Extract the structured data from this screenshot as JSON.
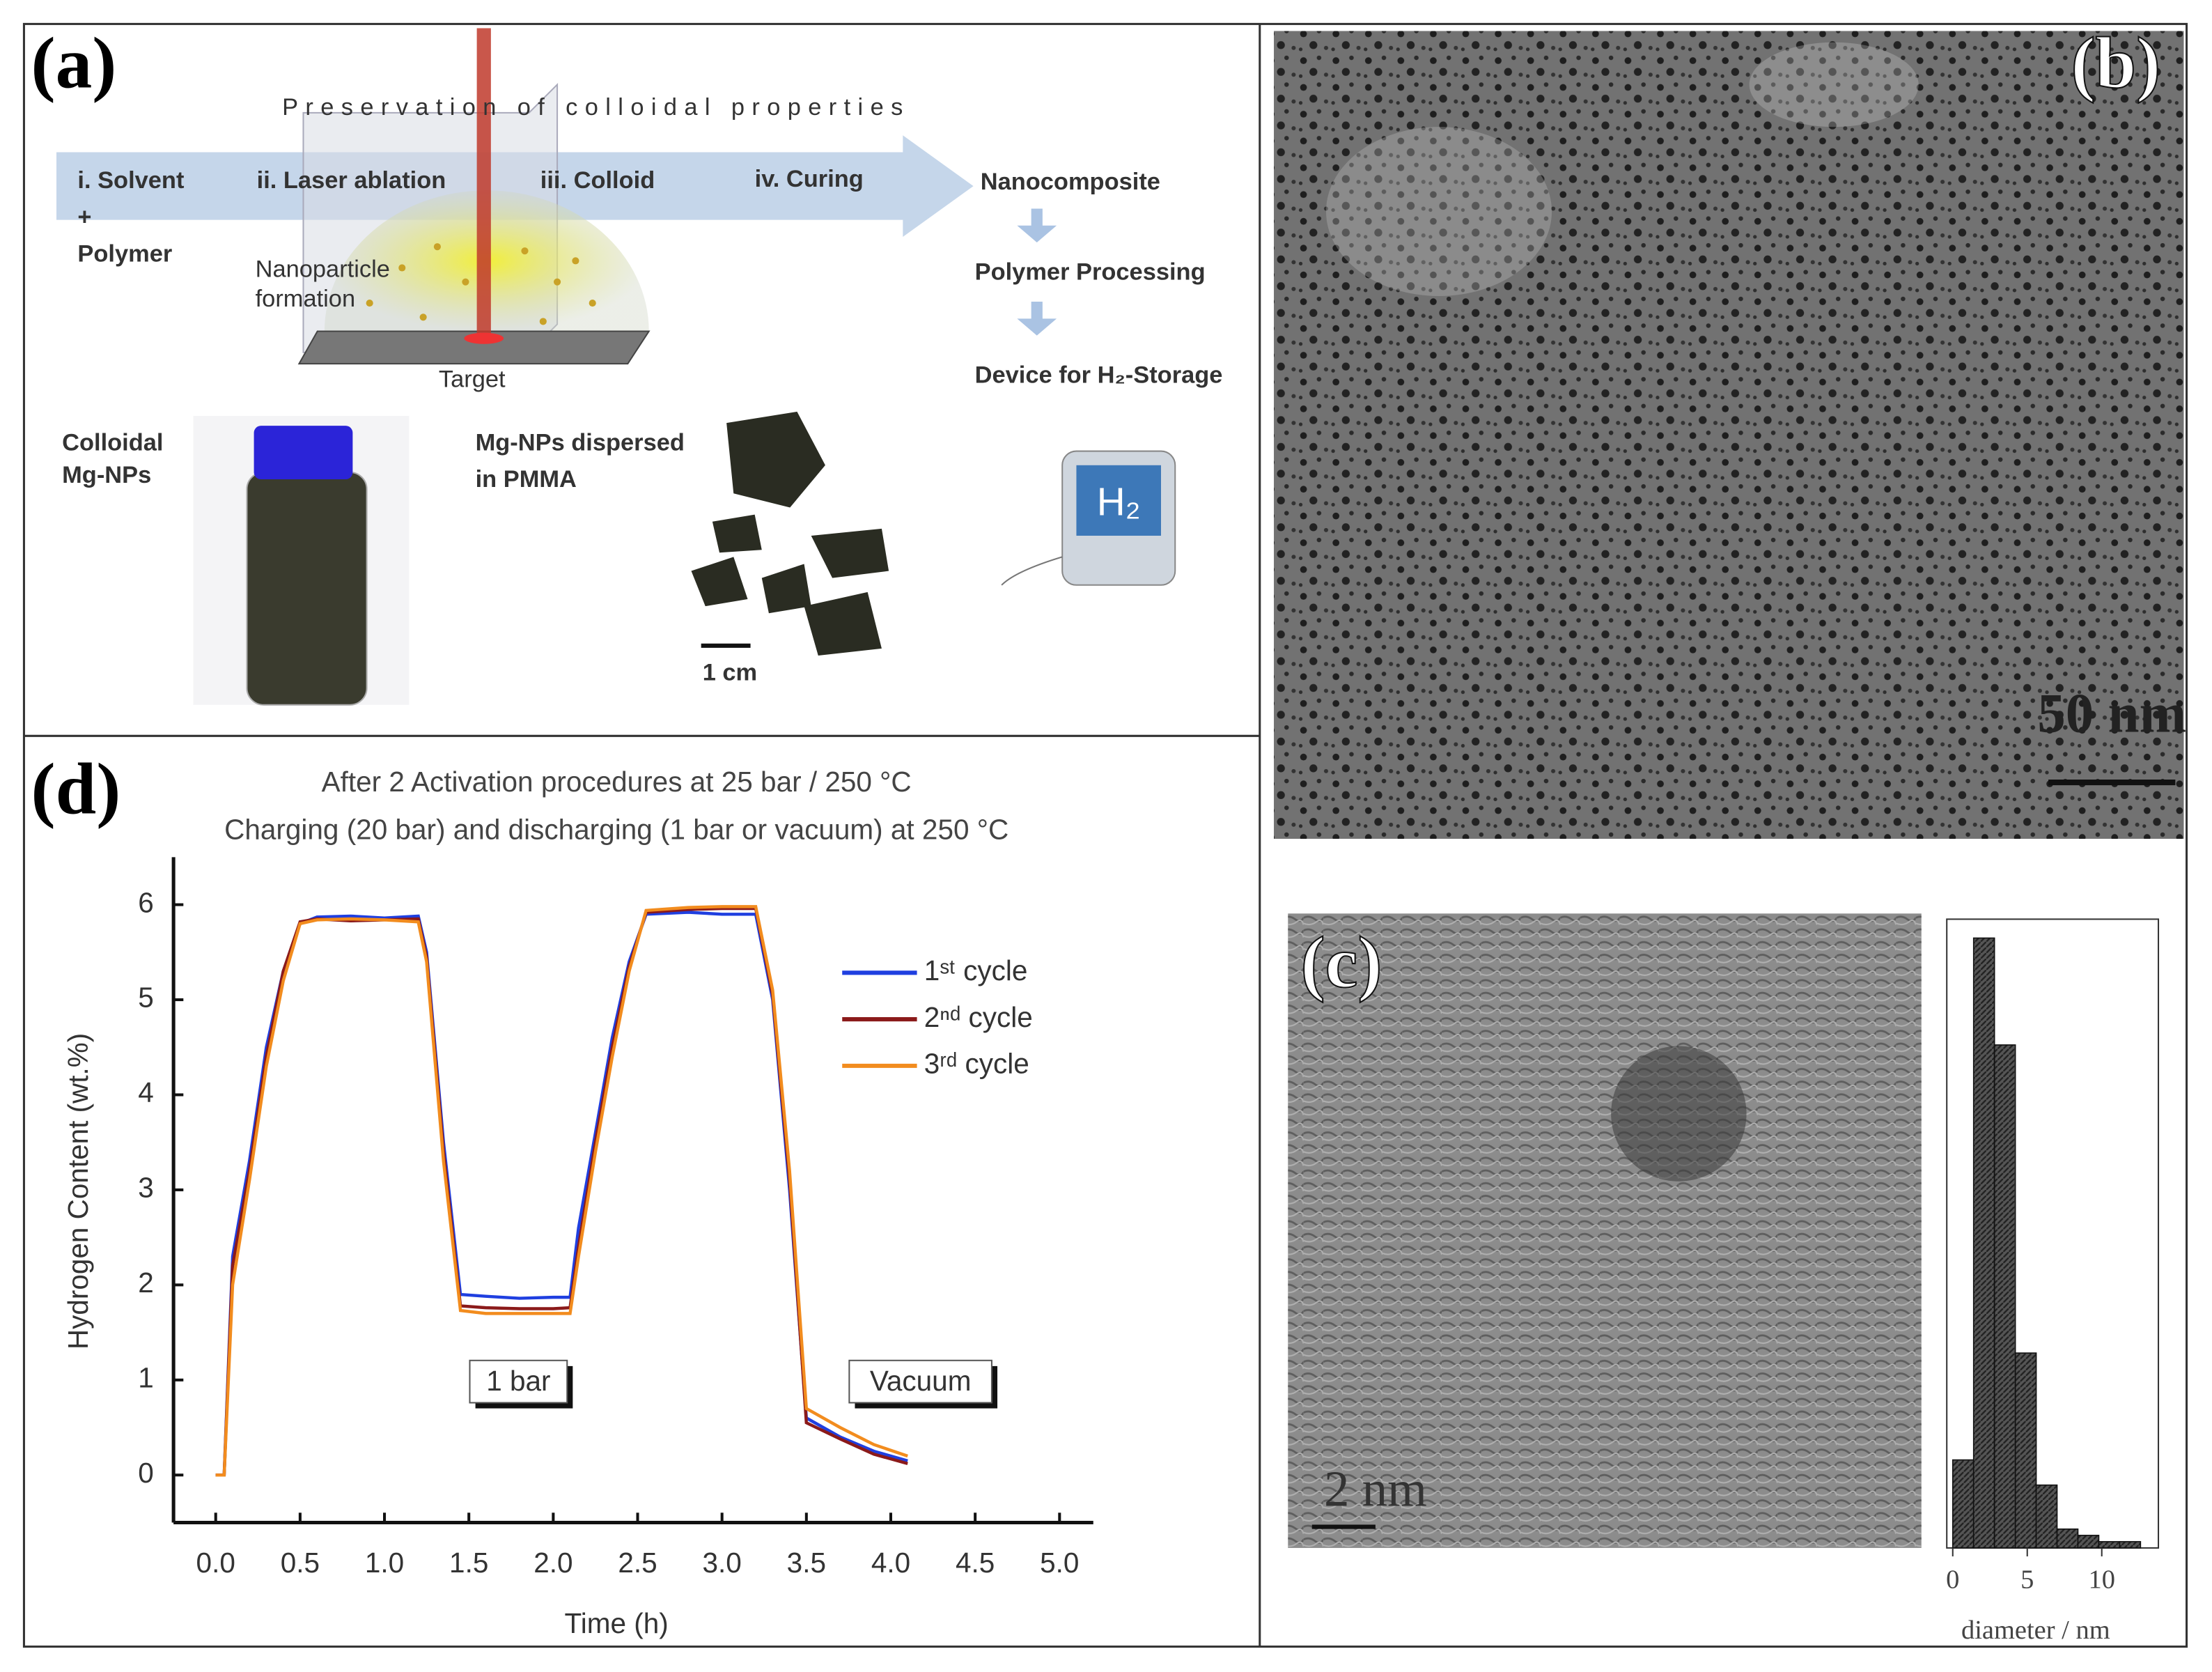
{
  "figure": {
    "panel_a": {
      "label": "(a)",
      "banner": "Preservation of colloidal properties",
      "steps": [
        "i. Solvent",
        "+",
        "Polymer",
        "ii. Laser ablation",
        "iii. Colloid",
        "iv. Curing"
      ],
      "formation": [
        "Nanoparticle",
        "formation"
      ],
      "target": "Target",
      "flow": [
        "Nanocomposite",
        "Polymer Processing",
        "Device for H₂-Storage"
      ],
      "colloid": [
        "Colloidal",
        "Mg-NPs"
      ],
      "dispersed": [
        "Mg-NPs dispersed",
        "in PMMA"
      ],
      "scale": "1 cm",
      "device_text": "H₂"
    },
    "panel_b": {
      "label": "(b)",
      "scale": "50 nm"
    },
    "panel_c": {
      "label": "(c)",
      "scale": "2 nm"
    },
    "panel_d": {
      "label": "(d)"
    }
  },
  "chart_data": [
    {
      "type": "line",
      "title": "After 2 Activation procedures at 25 bar / 250 °C",
      "subtitle": "Charging (20 bar) and discharging (1 bar or vacuum) at 250 °C",
      "x_label": "Time (h)",
      "y_label": "Hydrogen Content (wt.%)",
      "x": [
        0,
        0.05,
        0.1,
        0.2,
        0.3,
        0.4,
        0.5,
        0.6,
        0.8,
        1.0,
        1.2,
        1.25,
        1.35,
        1.45,
        1.6,
        1.8,
        2.0,
        2.1,
        2.15,
        2.25,
        2.35,
        2.45,
        2.55,
        2.8,
        3.0,
        3.2,
        3.3,
        3.4,
        3.5,
        3.7,
        3.9,
        4.1
      ],
      "series": [
        {
          "name": "1ˢᵗ cycle",
          "color": "#1f3fe0",
          "values": [
            0,
            0,
            2.3,
            3.3,
            4.5,
            5.3,
            5.8,
            5.87,
            5.88,
            5.86,
            5.88,
            5.5,
            3.5,
            1.9,
            1.88,
            1.86,
            1.87,
            1.87,
            2.6,
            3.6,
            4.6,
            5.4,
            5.9,
            5.92,
            5.9,
            5.9,
            5.0,
            3.0,
            0.6,
            0.4,
            0.25,
            0.15
          ]
        },
        {
          "name": "2ⁿᵈ cycle",
          "color": "#8b1a1a",
          "values": [
            0,
            0,
            2.2,
            3.2,
            4.4,
            5.3,
            5.82,
            5.85,
            5.83,
            5.84,
            5.85,
            5.45,
            3.4,
            1.78,
            1.76,
            1.75,
            1.75,
            1.76,
            2.4,
            3.5,
            4.5,
            5.35,
            5.92,
            5.95,
            5.96,
            5.96,
            5.05,
            3.1,
            0.55,
            0.38,
            0.22,
            0.12
          ]
        },
        {
          "name": "3ʳᵈ cycle",
          "color": "#f28c1e",
          "values": [
            0,
            0,
            2.0,
            3.1,
            4.3,
            5.2,
            5.8,
            5.84,
            5.85,
            5.84,
            5.82,
            5.4,
            3.3,
            1.73,
            1.7,
            1.7,
            1.7,
            1.7,
            2.3,
            3.4,
            4.4,
            5.3,
            5.94,
            5.97,
            5.98,
            5.98,
            5.1,
            3.2,
            0.7,
            0.5,
            0.32,
            0.2
          ]
        }
      ],
      "annotations": [
        "1 bar",
        "Vacuum"
      ],
      "xlim": [
        -0.25,
        5.2
      ],
      "ylim": [
        -0.5,
        6.5
      ],
      "xticks": [
        {
          "value": 0,
          "label": "0.0"
        },
        0.5,
        {
          "value": 1,
          "label": "1.0"
        },
        1.5,
        {
          "value": 2,
          "label": "2.0"
        },
        2.5,
        {
          "value": 3,
          "label": "3.0"
        },
        3.5,
        {
          "value": 4,
          "label": "4.0"
        },
        4.5,
        {
          "value": 5,
          "label": "5.0"
        }
      ],
      "yticks": [
        0,
        1,
        2,
        3,
        4,
        5,
        6
      ]
    },
    {
      "type": "histogram",
      "x_label": "diameter / nm",
      "color": "#3a3a3a",
      "bins": [
        0,
        1.4,
        2.8,
        4.2,
        5.6,
        7.0,
        8.4,
        9.8,
        11.2,
        12.6
      ],
      "values": [
        14,
        97,
        80,
        31,
        10,
        3,
        2,
        1,
        1
      ],
      "xlim": [
        -0.4,
        13.8
      ],
      "ylim": [
        0,
        100
      ],
      "xticks": [
        0,
        5,
        10
      ]
    }
  ]
}
